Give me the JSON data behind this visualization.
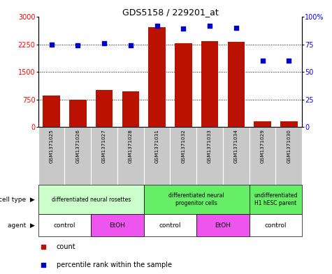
{
  "title": "GDS5158 / 229201_at",
  "samples": [
    "GSM1371025",
    "GSM1371026",
    "GSM1371027",
    "GSM1371028",
    "GSM1371031",
    "GSM1371032",
    "GSM1371033",
    "GSM1371034",
    "GSM1371029",
    "GSM1371030"
  ],
  "counts": [
    850,
    740,
    1000,
    960,
    2720,
    2280,
    2340,
    2310,
    150,
    160
  ],
  "percentiles": [
    75,
    74,
    76,
    74,
    92,
    89,
    92,
    90,
    60,
    60
  ],
  "ylim_left": [
    0,
    3000
  ],
  "ylim_right": [
    0,
    100
  ],
  "yticks_left": [
    0,
    750,
    1500,
    2250,
    3000
  ],
  "yticks_right": [
    0,
    25,
    50,
    75,
    100
  ],
  "ytick_right_labels": [
    "0",
    "25",
    "50",
    "75",
    "100%"
  ],
  "ytick_left_labels": [
    "0",
    "750",
    "1500",
    "2250",
    "3000"
  ],
  "cell_type_groups": [
    {
      "label": "differentiated neural rosettes",
      "start": 0,
      "end": 4,
      "color": "#ccffcc"
    },
    {
      "label": "differentiated neural\nprogenitor cells",
      "start": 4,
      "end": 8,
      "color": "#66ee66"
    },
    {
      "label": "undifferentiated\nH1 hESC parent",
      "start": 8,
      "end": 10,
      "color": "#66ee66"
    }
  ],
  "agent_groups": [
    {
      "label": "control",
      "start": 0,
      "end": 2,
      "color": "#ffffff"
    },
    {
      "label": "EtOH",
      "start": 2,
      "end": 4,
      "color": "#ee55ee"
    },
    {
      "label": "control",
      "start": 4,
      "end": 6,
      "color": "#ffffff"
    },
    {
      "label": "EtOH",
      "start": 6,
      "end": 8,
      "color": "#ee55ee"
    },
    {
      "label": "control",
      "start": 8,
      "end": 10,
      "color": "#ffffff"
    }
  ],
  "bar_color": "#bb1100",
  "dot_color": "#0000cc",
  "bg_color": "#ffffff",
  "sample_bg_color": "#c8c8c8",
  "left_label": "cell type",
  "left_label2": "agent",
  "legend_items": [
    "count",
    "percentile rank within the sample"
  ]
}
